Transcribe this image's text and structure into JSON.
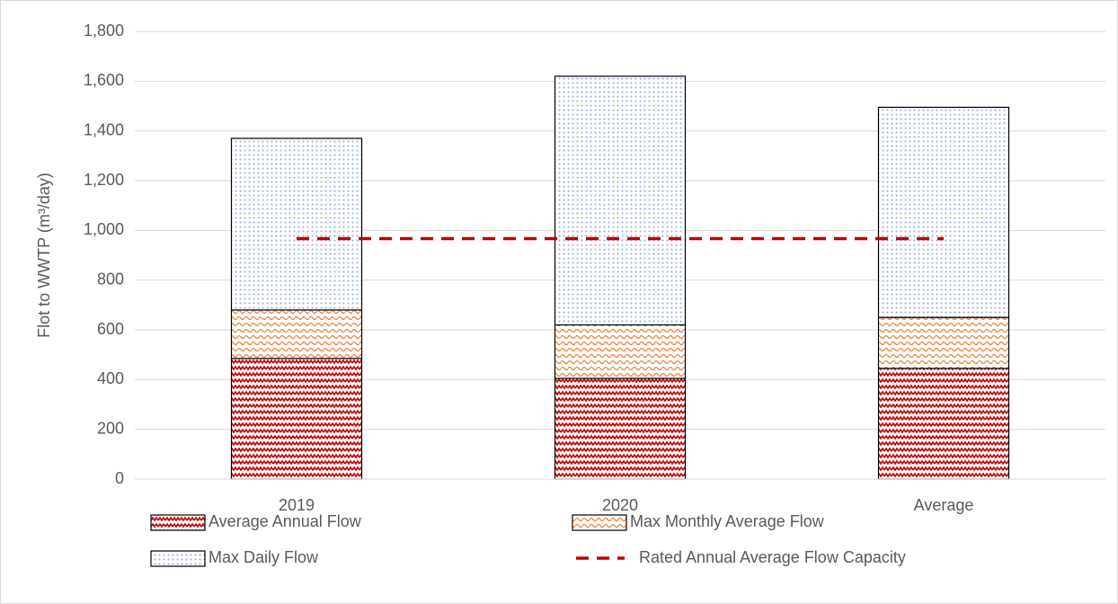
{
  "chart_data": {
    "type": "bar",
    "stacked": true,
    "y_label": "Flot to WWTP (m³/day)",
    "categories": [
      "2019",
      "2020",
      "Average"
    ],
    "series": [
      {
        "name": "Average Annual Flow",
        "color": "#c00000",
        "values": [
          485,
          405,
          445
        ]
      },
      {
        "name": "Max Monthly Average Flow",
        "color": "#ed7d31",
        "values": [
          195,
          215,
          205
        ]
      },
      {
        "name": "Max Daily Flow",
        "color": "#8faadc",
        "values": [
          690,
          1000,
          845
        ]
      },
      {
        "name": "Rated Annual Average Flow Capacity",
        "type": "line",
        "dashed": true,
        "color": "#c00000",
        "values": [
          967,
          967,
          967
        ]
      }
    ],
    "ylim": [
      0,
      1800
    ],
    "yticks": [
      0,
      200,
      400,
      600,
      800,
      {
        "value": 1000,
        "label": "1,000"
      },
      {
        "value": 1200,
        "label": "1,200"
      },
      {
        "value": 1400,
        "label": "1,400"
      },
      {
        "value": 1600,
        "label": "1,600"
      },
      {
        "value": 1800,
        "label": "1,800"
      }
    ],
    "grid": true,
    "legend": "bottom"
  }
}
